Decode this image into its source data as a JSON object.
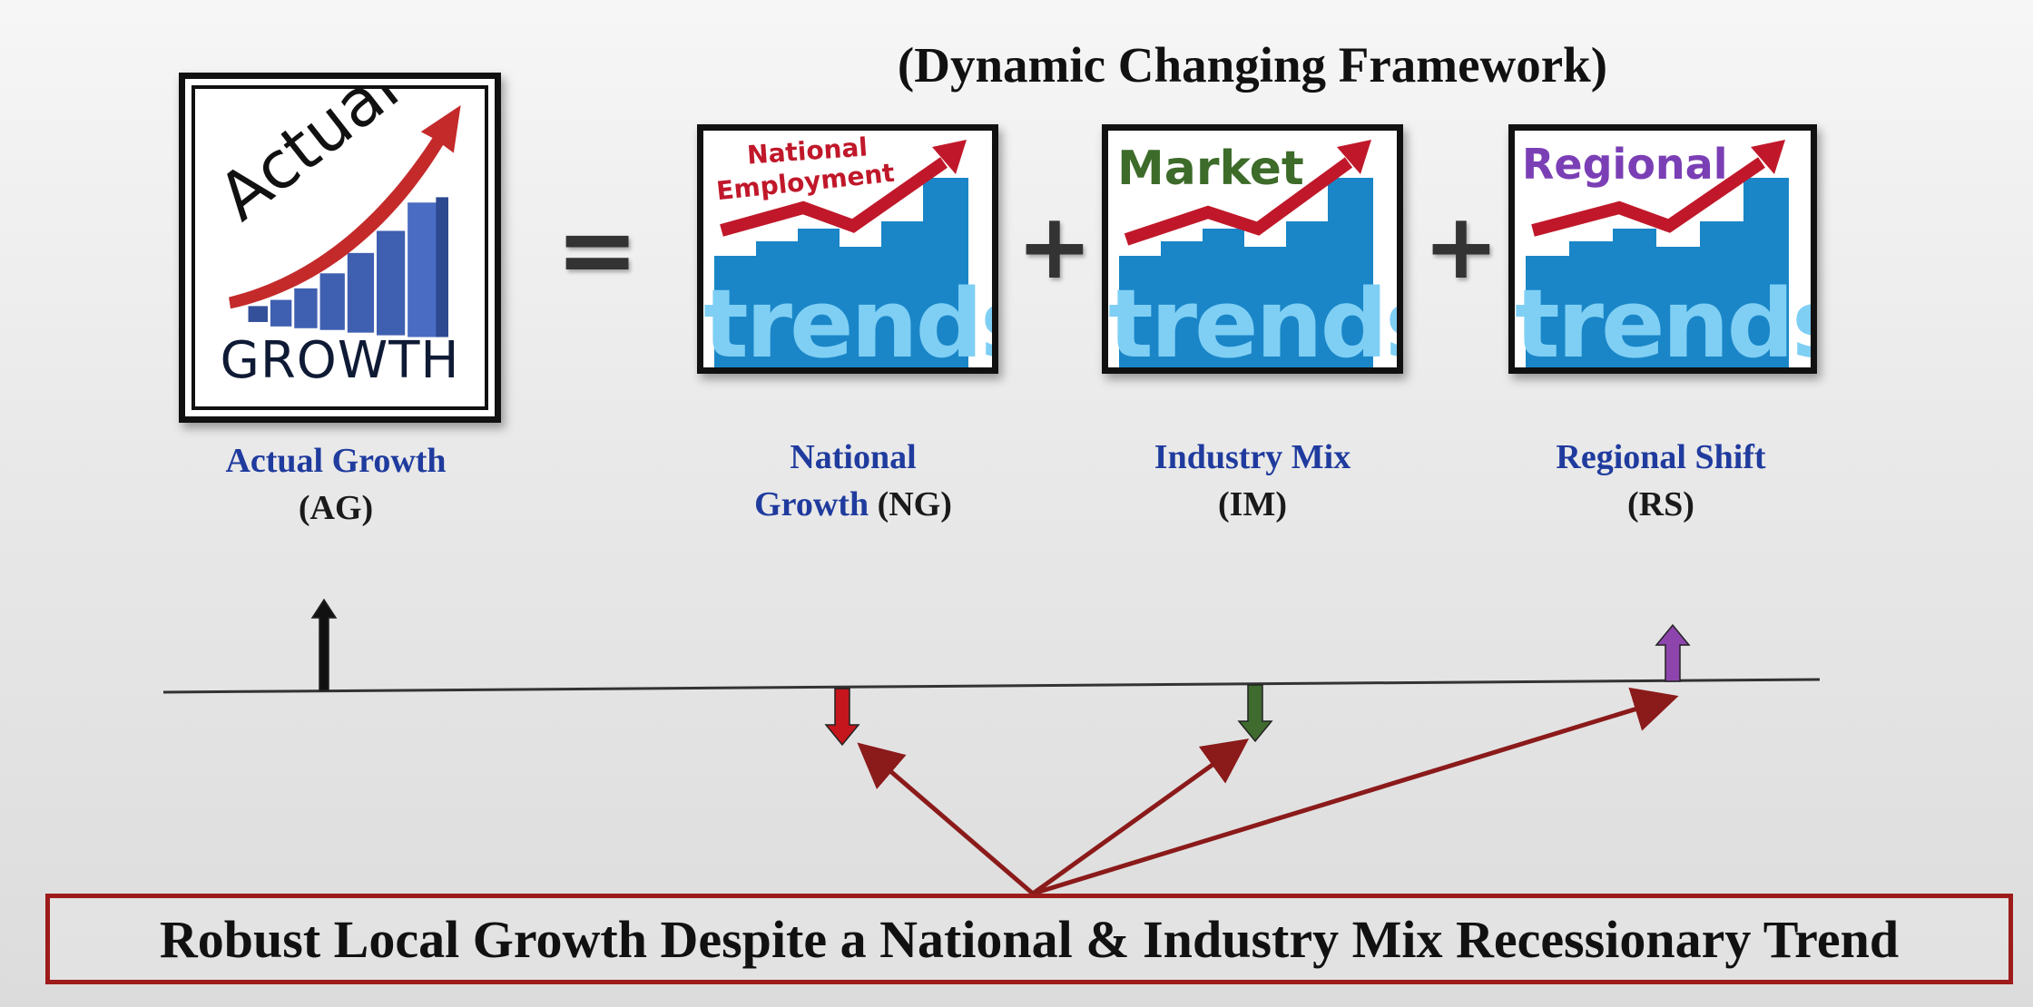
{
  "title": "(Dynamic Changing Framework)",
  "equation": {
    "equals_symbol": "=",
    "plus_symbol": "+"
  },
  "actual_growth_tile": {
    "word_top": "Actual",
    "word_bottom": "GROWTH",
    "icon": "growth-chart-arrow-icon"
  },
  "tiles": [
    {
      "label_line1": "National",
      "label_line2": "Employment",
      "word": "trends",
      "label_color": "#c0182a"
    },
    {
      "label_line1": "Market",
      "label_line2": "",
      "word": "trends",
      "label_color": "#3d6b2a"
    },
    {
      "label_line1": "Regional",
      "label_line2": "",
      "word": "trends",
      "label_color": "#7b3fb5"
    }
  ],
  "captions": {
    "ag": {
      "line1": "Actual Growth",
      "line2": "(AG)"
    },
    "ng": {
      "line1": "National",
      "line2_blue": "Growth",
      "line2_dark": "(NG)"
    },
    "im": {
      "line1": "Industry Mix",
      "line2": "(IM)"
    },
    "rs": {
      "line1": "Regional Shift",
      "line2": "(RS)"
    }
  },
  "direction_arrows": [
    {
      "component": "AG",
      "direction": "up",
      "color": "#111111"
    },
    {
      "component": "NG",
      "direction": "down",
      "color": "#c4161c"
    },
    {
      "component": "IM",
      "direction": "down",
      "color": "#3f6b2f"
    },
    {
      "component": "RS",
      "direction": "up",
      "color": "#8e44ad"
    }
  ],
  "pointer_arrow_color": "#8b1a1a",
  "banner_text": "Robust Local Growth Despite a National & Industry Mix Recessionary Trend"
}
